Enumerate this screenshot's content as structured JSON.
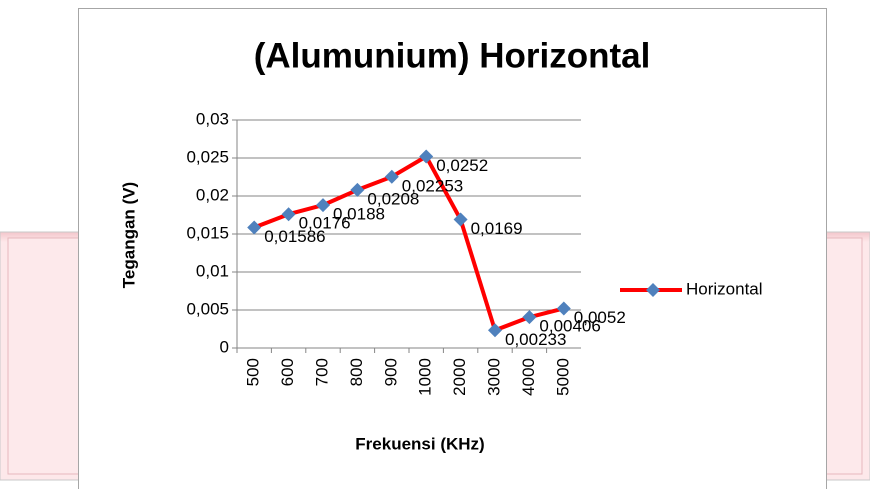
{
  "chart_data": {
    "type": "line",
    "title": "(Alumunium) Horizontal",
    "xlabel": "Frekuensi (KHz)",
    "ylabel": "Tegangan (V)",
    "categories": [
      "500",
      "600",
      "700",
      "800",
      "900",
      "1000",
      "2000",
      "3000",
      "4000",
      "5000"
    ],
    "series": [
      {
        "name": "Horizontal",
        "color": "#ff0000",
        "marker_color": "#4f81bd",
        "values": [
          0.01586,
          0.0176,
          0.0188,
          0.0208,
          0.02253,
          0.0252,
          0.0169,
          0.00233,
          0.00406,
          0.0052
        ],
        "value_labels": [
          "0,01586",
          "0,0176",
          "0,0188",
          "0,0208",
          "0,02253",
          "0,0252",
          "0,0169",
          "0,00233",
          "0,00406",
          "0,0052"
        ]
      }
    ],
    "ylim": [
      0,
      0.03
    ],
    "yticks": [
      0,
      {
        "value": 0.005,
        "label": "0,005"
      },
      {
        "value": 0.01,
        "label": "0,01"
      },
      {
        "value": 0.015,
        "label": "0,015"
      },
      {
        "value": 0.02,
        "label": "0,02"
      },
      {
        "value": 0.025,
        "label": "0,025"
      },
      {
        "value": 0.03,
        "label": "0,03"
      }
    ],
    "grid": true,
    "legend": "right"
  }
}
